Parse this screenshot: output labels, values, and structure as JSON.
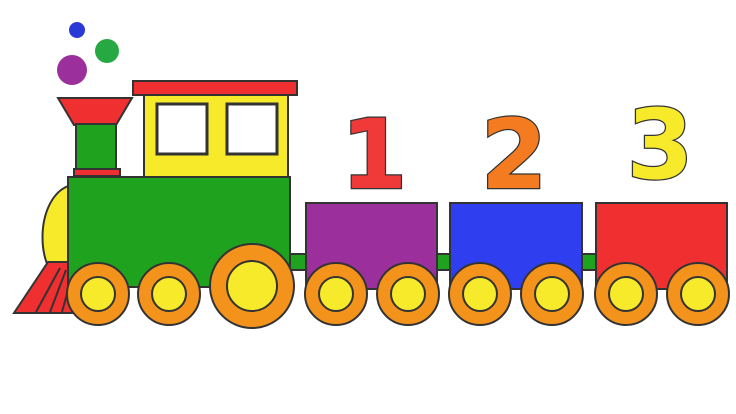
{
  "scene": {
    "subject": "toy train",
    "numbers": [
      {
        "label": "1",
        "color": "#f03a3a"
      },
      {
        "label": "2",
        "color": "#f47b20"
      },
      {
        "label": "3",
        "color": "#f7ea2b"
      }
    ],
    "wagons": [
      {
        "color": "#9b2f9b"
      },
      {
        "color": "#2f3ff0"
      },
      {
        "color": "#f03030"
      }
    ],
    "smoke_colors": [
      "#2b3ad6",
      "#26a843",
      "#9b2f9b"
    ],
    "locomotive": {
      "body_color": "#1fa31f",
      "cab_color": "#f7ea2b",
      "roof_color": "#f03030",
      "chimney_color": "#f03030",
      "wheel_outer_color": "#f4931c",
      "wheel_inner_color": "#f7ea2b"
    }
  }
}
